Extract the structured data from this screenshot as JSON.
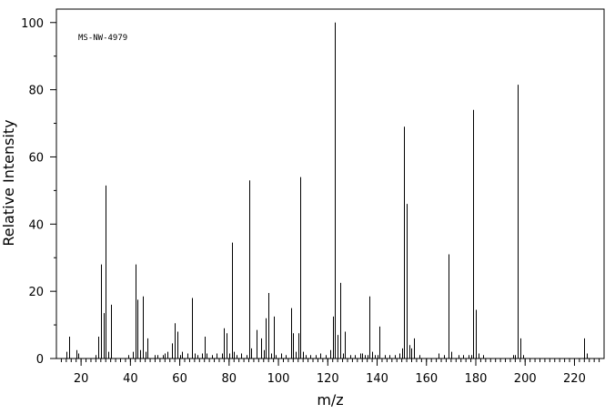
{
  "chart_data": {
    "type": "bar",
    "xlabel": "m/z",
    "ylabel": "Relative Intensity",
    "annotation": "MS-NW-4979",
    "xlim": [
      10,
      232
    ],
    "ylim": [
      0,
      104
    ],
    "x_major_ticks": [
      20,
      40,
      60,
      80,
      100,
      120,
      140,
      160,
      180,
      200,
      220
    ],
    "y_major_ticks": [
      0,
      20,
      40,
      60,
      80,
      100
    ],
    "x_tick_labels": [
      "20",
      "40",
      "60",
      "80",
      "100",
      "120",
      "140",
      "160",
      "180",
      "200",
      "220"
    ],
    "y_tick_labels": [
      "0",
      "20",
      "40",
      "60",
      "80",
      "100"
    ],
    "grid": false,
    "series": [
      {
        "x": [
          14,
          15,
          18,
          19,
          26,
          27,
          28,
          29,
          30,
          31,
          32,
          39,
          41,
          42,
          43,
          44,
          45,
          46,
          47,
          50,
          51,
          53,
          54,
          55,
          57,
          58,
          59,
          60,
          61,
          63,
          65,
          66,
          67,
          69,
          70,
          71,
          73,
          75,
          77,
          78,
          79,
          80,
          81,
          82,
          83,
          85,
          87,
          88,
          89,
          91,
          93,
          94,
          95,
          96,
          97,
          98,
          99,
          101,
          103,
          105,
          106,
          107,
          108,
          109,
          110,
          111,
          113,
          115,
          117,
          119,
          121,
          122,
          123,
          124,
          125,
          126,
          127,
          129,
          131,
          133,
          134,
          135,
          136,
          137,
          138,
          139,
          140,
          141,
          143,
          145,
          147,
          149,
          150,
          151,
          152,
          153,
          154,
          155,
          157,
          165,
          167,
          169,
          170,
          173,
          175,
          177,
          178,
          179,
          180,
          181,
          183,
          195,
          196,
          197,
          198,
          199,
          224,
          225
        ],
        "values": [
          2,
          6.5,
          2.5,
          1.5,
          1,
          6.5,
          28,
          13.5,
          51.5,
          2,
          16,
          1,
          2,
          28,
          17.5,
          2.5,
          18.5,
          2,
          6,
          1,
          1,
          1,
          1.5,
          2,
          4.5,
          10.5,
          8,
          1,
          2,
          1.5,
          18,
          1.5,
          1,
          1.5,
          6.5,
          1.5,
          1,
          1.5,
          1.5,
          9,
          7.5,
          1.5,
          34.5,
          2,
          1,
          1.5,
          1,
          53,
          3,
          8.5,
          6,
          2.5,
          12,
          19.5,
          1.5,
          12.5,
          1,
          1.5,
          1,
          15,
          7.5,
          2,
          7.5,
          54,
          2,
          1,
          1,
          1,
          1.5,
          1,
          2.5,
          12.5,
          100,
          7,
          22.5,
          1.5,
          8,
          1,
          1,
          1.5,
          1.5,
          1,
          1,
          18.5,
          2,
          1,
          1,
          9.5,
          1,
          1,
          1,
          1.5,
          3,
          69,
          46,
          4,
          3,
          6,
          1,
          1.5,
          1,
          31,
          2,
          1,
          1,
          1,
          1,
          74,
          14.5,
          1.5,
          1,
          1,
          1,
          81.5,
          6,
          1,
          6,
          1.5
        ]
      }
    ]
  }
}
